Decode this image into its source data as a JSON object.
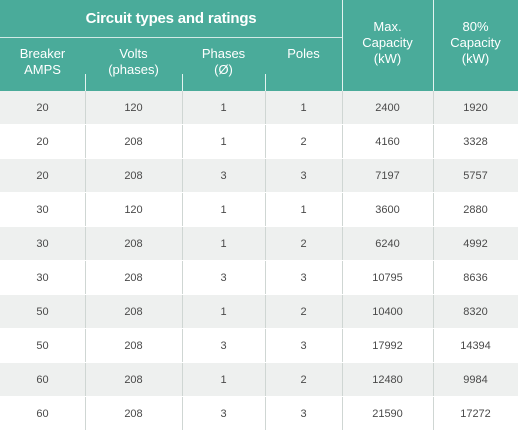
{
  "table": {
    "title": "Circuit types and ratings",
    "headers": {
      "amps": [
        "Breaker",
        "AMPS"
      ],
      "volts": [
        "Volts",
        "(phases)"
      ],
      "phases": [
        "Phases",
        "(Ø)"
      ],
      "poles": [
        "Poles"
      ],
      "max": [
        "Max.",
        "Capacity",
        "(kW)"
      ],
      "pct80": [
        "80%",
        "Capacity",
        "(kW)"
      ]
    },
    "rows": [
      [
        "20",
        "120",
        "1",
        "1",
        "2400",
        "1920"
      ],
      [
        "20",
        "208",
        "1",
        "2",
        "4160",
        "3328"
      ],
      [
        "20",
        "208",
        "3",
        "3",
        "7197",
        "5757"
      ],
      [
        "30",
        "120",
        "1",
        "1",
        "3600",
        "2880"
      ],
      [
        "30",
        "208",
        "1",
        "2",
        "6240",
        "4992"
      ],
      [
        "30",
        "208",
        "3",
        "3",
        "10795",
        "8636"
      ],
      [
        "50",
        "208",
        "1",
        "2",
        "10400",
        "8320"
      ],
      [
        "50",
        "208",
        "3",
        "3",
        "17992",
        "14394"
      ],
      [
        "60",
        "208",
        "1",
        "2",
        "12480",
        "9984"
      ],
      [
        "60",
        "208",
        "3",
        "3",
        "21590",
        "17272"
      ]
    ],
    "colors": {
      "header_bg": "#4aab9a",
      "header_text": "#ffffff",
      "row_alt_bg": "#eef0ef",
      "cell_text": "#4a4a4a"
    }
  }
}
